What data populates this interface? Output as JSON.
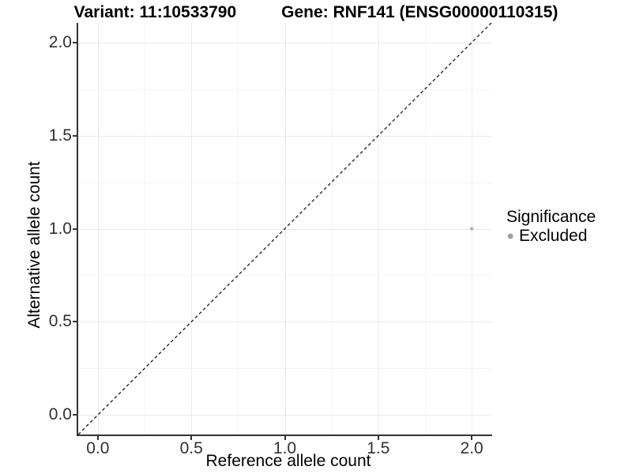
{
  "chart_data": {
    "type": "scatter",
    "titles": {
      "variant": "Variant: 11:10533790",
      "gene": "Gene: RNF141 (ENSG00000110315)"
    },
    "xlabel": "Reference allele count",
    "ylabel": "Alternative allele count",
    "xlim": [
      -0.105,
      2.105
    ],
    "ylim": [
      -0.105,
      2.105
    ],
    "x_ticks": {
      "values": [
        0,
        0.5,
        1,
        1.5,
        2
      ],
      "labels": [
        "0.0",
        "0.5",
        "1.0",
        "1.5",
        "2.0"
      ]
    },
    "y_ticks": {
      "values": [
        0,
        0.5,
        1,
        1.5,
        2
      ],
      "labels": [
        "0.0",
        "0.5",
        "1.0",
        "1.5",
        "2.0"
      ]
    },
    "minor_ticks": [
      0.25,
      0.75,
      1.25,
      1.75
    ],
    "grid": {
      "enabled": true,
      "major_color": "#e9e9e9",
      "minor_color": "#f4f4f4"
    },
    "reference_line": {
      "type": "identity",
      "style": "dashed",
      "color": "#1a1a1a",
      "from": [
        -0.105,
        -0.105
      ],
      "to": [
        2.105,
        2.105
      ]
    },
    "series": [
      {
        "name": "Excluded",
        "color": "#ababab",
        "point_radius": 2,
        "points": [
          {
            "x": 2.0,
            "y": 1.0
          }
        ]
      }
    ],
    "legend": {
      "title": "Significance",
      "position": "right",
      "items": [
        {
          "label": "Excluded",
          "color": "#a0a0a0"
        }
      ]
    }
  },
  "colors": {
    "background": "#ffffff",
    "axis_line": "#333333",
    "axis_text": "#303030",
    "title_text": "#000000"
  }
}
